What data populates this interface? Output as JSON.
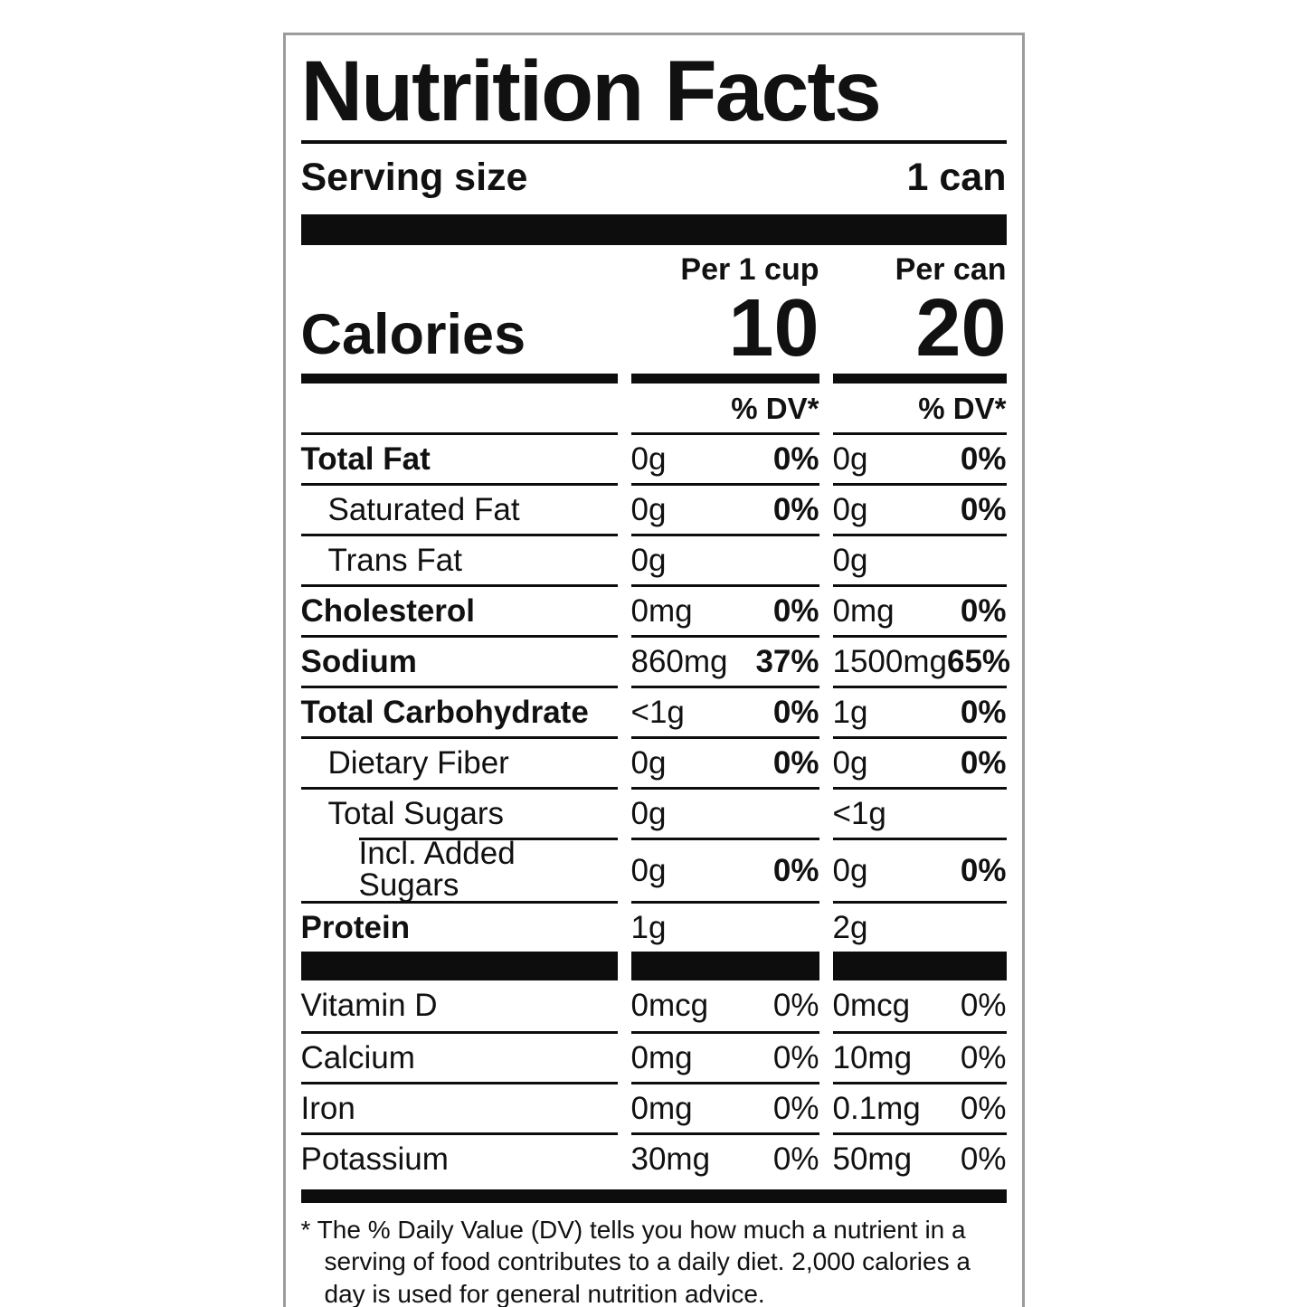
{
  "label": {
    "title": "Nutrition Facts",
    "serving": {
      "label": "Serving size",
      "value": "1 can"
    },
    "calories": {
      "label": "Calories",
      "per_cup": {
        "header": "Per 1 cup",
        "value": "10"
      },
      "per_can": {
        "header": "Per can",
        "value": "20"
      }
    },
    "dv_header": {
      "per_cup": "% DV*",
      "per_can": "% DV*"
    },
    "nutrients": [
      {
        "name": "Total Fat",
        "bold": true,
        "indent": 0,
        "inset_top": false,
        "per_cup": {
          "amount": "0g",
          "dv": "0%"
        },
        "per_can": {
          "amount": "0g",
          "dv": "0%"
        }
      },
      {
        "name": "Saturated Fat",
        "bold": false,
        "indent": 1,
        "inset_top": false,
        "per_cup": {
          "amount": "0g",
          "dv": "0%"
        },
        "per_can": {
          "amount": "0g",
          "dv": "0%"
        }
      },
      {
        "name": "Trans Fat",
        "bold": false,
        "indent": 1,
        "inset_top": false,
        "per_cup": {
          "amount": "0g",
          "dv": ""
        },
        "per_can": {
          "amount": "0g",
          "dv": ""
        }
      },
      {
        "name": "Cholesterol",
        "bold": true,
        "indent": 0,
        "inset_top": false,
        "per_cup": {
          "amount": "0mg",
          "dv": "0%"
        },
        "per_can": {
          "amount": "0mg",
          "dv": "0%"
        }
      },
      {
        "name": "Sodium",
        "bold": true,
        "indent": 0,
        "inset_top": false,
        "per_cup": {
          "amount": "860mg",
          "dv": "37%"
        },
        "per_can": {
          "amount": "1500mg",
          "dv": "65%"
        }
      },
      {
        "name": "Total Carbohydrate",
        "bold": true,
        "indent": 0,
        "inset_top": false,
        "per_cup": {
          "amount": "<1g",
          "dv": "0%"
        },
        "per_can": {
          "amount": "1g",
          "dv": "0%"
        }
      },
      {
        "name": "Dietary Fiber",
        "bold": false,
        "indent": 1,
        "inset_top": false,
        "per_cup": {
          "amount": "0g",
          "dv": "0%"
        },
        "per_can": {
          "amount": "0g",
          "dv": "0%"
        }
      },
      {
        "name": "Total Sugars",
        "bold": false,
        "indent": 1,
        "inset_top": false,
        "per_cup": {
          "amount": "0g",
          "dv": ""
        },
        "per_can": {
          "amount": "<1g",
          "dv": ""
        }
      },
      {
        "name": "Incl. Added Sugars",
        "bold": false,
        "indent": 2,
        "inset_top": true,
        "per_cup": {
          "amount": "0g",
          "dv": "0%"
        },
        "per_can": {
          "amount": "0g",
          "dv": "0%"
        }
      },
      {
        "name": "Protein",
        "bold": true,
        "indent": 0,
        "inset_top": false,
        "per_cup": {
          "amount": "1g",
          "dv": ""
        },
        "per_can": {
          "amount": "2g",
          "dv": ""
        }
      }
    ],
    "vitamins": [
      {
        "name": "Vitamin D",
        "per_cup": {
          "amount": "0mcg",
          "dv": "0%"
        },
        "per_can": {
          "amount": "0mcg",
          "dv": "0%"
        }
      },
      {
        "name": "Calcium",
        "per_cup": {
          "amount": "0mg",
          "dv": "0%"
        },
        "per_can": {
          "amount": "10mg",
          "dv": "0%"
        }
      },
      {
        "name": "Iron",
        "per_cup": {
          "amount": "0mg",
          "dv": "0%"
        },
        "per_can": {
          "amount": "0.1mg",
          "dv": "0%"
        }
      },
      {
        "name": "Potassium",
        "per_cup": {
          "amount": "30mg",
          "dv": "0%"
        },
        "per_can": {
          "amount": "50mg",
          "dv": "0%"
        }
      }
    ],
    "footnote": "* The % Daily Value (DV) tells you how much a nutrient in a serving of food contributes to a daily diet. 2,000 calories a day is used for general nutrition advice.",
    "colors": {
      "ink": "#0d0d0d",
      "border": "#9c9c9c",
      "background": "#ffffff"
    }
  }
}
